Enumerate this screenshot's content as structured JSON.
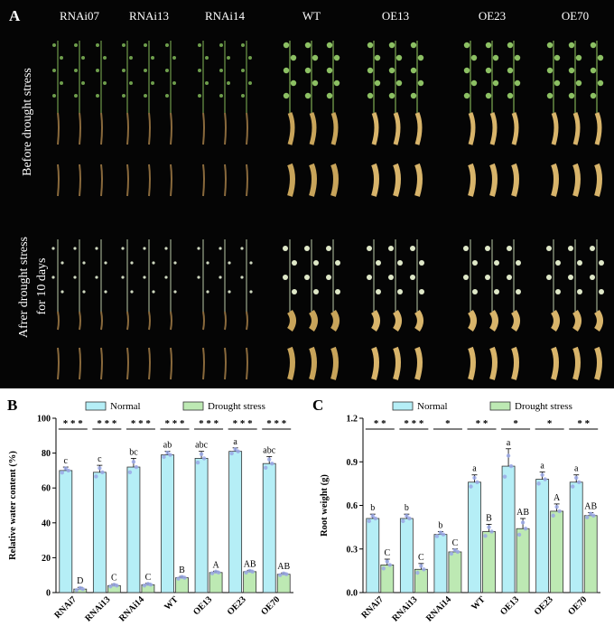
{
  "panel_a": {
    "letter": "A",
    "genotypes": [
      "RNAi07",
      "RNAi13",
      "RNAi14",
      "WT",
      "OE13",
      "OE23",
      "OE70"
    ],
    "row_labels": {
      "before": "Before drought stress",
      "after_line1": "Afrer drought stress",
      "after_line2": "for 10 days"
    }
  },
  "colors": {
    "normal": "#b5eef6",
    "drought": "#bde9b3",
    "bar_edge": "#333333",
    "dots": "#9aa8e6",
    "photo_bg": "#050505"
  },
  "chart_data": [
    {
      "letter": "B",
      "type": "bar",
      "ylabel": "Relative water content (%)",
      "ylim": [
        0,
        100
      ],
      "yticks": [
        "0",
        "20",
        "40",
        "60",
        "80",
        "100"
      ],
      "categories": [
        "RNAi7",
        "RNAi13",
        "RNAi14",
        "WT",
        "OE13",
        "OE23",
        "OE70"
      ],
      "series": [
        {
          "name": "Normal",
          "values": [
            70,
            69,
            72,
            79,
            77,
            81,
            74
          ],
          "errors": [
            2,
            4,
            5,
            2,
            4,
            2,
            4
          ],
          "letters": [
            "c",
            "c",
            "bc",
            "ab",
            "abc",
            "a",
            "abc"
          ]
        },
        {
          "name": "Drought stress",
          "values": [
            2,
            4,
            4.5,
            8.5,
            11.5,
            12,
            10.5
          ],
          "errors": [
            1,
            0.8,
            0.8,
            0.8,
            0.8,
            0.8,
            0.8
          ],
          "letters": [
            "D",
            "C",
            "C",
            "B",
            "A",
            "AB",
            "AB"
          ]
        }
      ],
      "significance": [
        "* * *",
        "* * *",
        "* * *",
        "* * *",
        "* * *",
        "* * *",
        "* * *"
      ],
      "legend": "top"
    },
    {
      "letter": "C",
      "type": "bar",
      "ylabel": "Root weight (g)",
      "ylim": [
        0,
        1.2
      ],
      "yticks": [
        "0.0",
        "0.3",
        "0.6",
        "0.9",
        "1.2"
      ],
      "categories": [
        "RNAi7",
        "RNAi13",
        "RNAi14",
        "WT",
        "OE13",
        "OE23",
        "OE70"
      ],
      "series": [
        {
          "name": "Normal",
          "values": [
            0.51,
            0.51,
            0.4,
            0.76,
            0.87,
            0.78,
            0.76
          ],
          "errors": [
            0.03,
            0.03,
            0.02,
            0.05,
            0.12,
            0.05,
            0.05
          ],
          "letters": [
            "b",
            "b",
            "b",
            "a",
            "a",
            "a",
            "a"
          ]
        },
        {
          "name": "Drought stress",
          "values": [
            0.19,
            0.16,
            0.28,
            0.42,
            0.44,
            0.56,
            0.53
          ],
          "errors": [
            0.04,
            0.04,
            0.02,
            0.05,
            0.07,
            0.05,
            0.02
          ],
          "letters": [
            "C",
            "C",
            "C",
            "B",
            "AB",
            "A",
            "AB"
          ]
        }
      ],
      "significance": [
        "* *",
        "* * *",
        "*",
        "* *",
        "*",
        "*",
        "* *"
      ],
      "legend": "top"
    }
  ]
}
